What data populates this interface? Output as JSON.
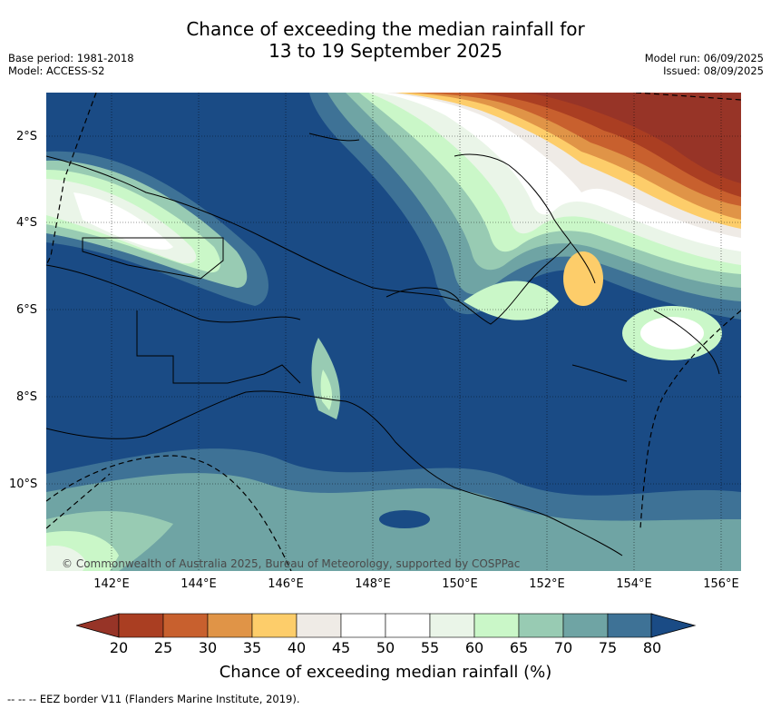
{
  "header": {
    "title_line1": "Chance of exceeding the median rainfall for",
    "title_line2": "13 to 19 September 2025",
    "base_period": "Base period: 1981-2018",
    "model": "Model: ACCESS-S2",
    "model_run": "Model run: 06/09/2025",
    "issued": "Issued: 08/09/2025"
  },
  "map": {
    "lat_ticks": [
      "2°S",
      "4°S",
      "6°S",
      "8°S",
      "10°S"
    ],
    "lon_ticks": [
      "142°E",
      "144°E",
      "146°E",
      "148°E",
      "150°E",
      "152°E",
      "154°E",
      "156°E"
    ],
    "copyright": "© Commonwealth of Australia 2025, Bureau of Meteorology, supported by COSPPac"
  },
  "legend": {
    "ticks": [
      "20",
      "25",
      "30",
      "35",
      "40",
      "45",
      "50",
      "55",
      "60",
      "65",
      "70",
      "75",
      "80"
    ],
    "colors": [
      "#aa3e22",
      "#c8602e",
      "#e09447",
      "#fdcd6a",
      "#efebe6",
      "#ffffff",
      "#ffffff",
      "#eaf5e8",
      "#caf7c8",
      "#98cbb3",
      "#6fa4a4",
      "#3e7296"
    ],
    "under_color": "#973427",
    "over_color": "#1a4b85",
    "label": "Chance of exceeding median rainfall (%)"
  },
  "footnote": "-- -- -- EEZ border V11 (Flanders Marine Institute, 2019)."
}
